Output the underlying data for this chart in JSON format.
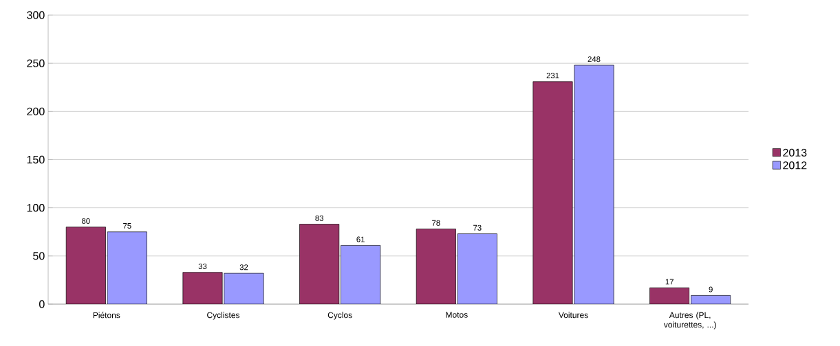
{
  "chart_data": {
    "type": "bar",
    "categories": [
      "Piétons",
      "Cyclistes",
      "Cyclos",
      "Motos",
      "Voitures",
      "Autres (PL, voiturettes, ...)"
    ],
    "series": [
      {
        "name": "2013",
        "color": "#993366",
        "values": [
          80,
          33,
          83,
          78,
          231,
          17
        ]
      },
      {
        "name": "2012",
        "color": "#9999ff",
        "values": [
          75,
          32,
          61,
          73,
          248,
          9
        ]
      }
    ],
    "ylim": [
      0,
      300
    ],
    "yticks": [
      0,
      50,
      100,
      150,
      200,
      250,
      300
    ],
    "grid": "y",
    "legend": "right",
    "data_labels": true
  }
}
